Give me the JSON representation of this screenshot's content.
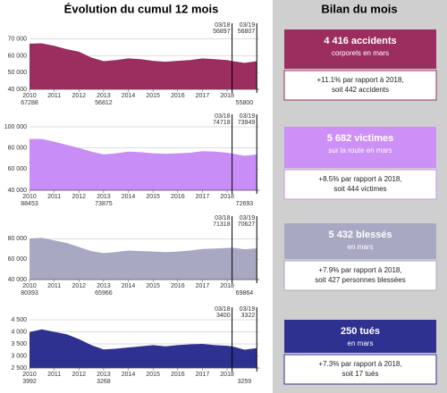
{
  "title": "Évolution du cumul 12 mois",
  "side_title": "Bilan du mois",
  "panels": [
    {
      "headline": "4 416 accidents",
      "subtitle": "corporels en mars",
      "lines": [
        "+11.1% par rapport à 2018,",
        "soit 442 accidents"
      ],
      "color": "#9b2d5f"
    },
    {
      "headline": "5 682 victimes",
      "subtitle": "sur la route en mars",
      "lines": [
        "+8.5% par rapport à 2018,",
        "soit 444 victimes"
      ],
      "color": "#cd90f7"
    },
    {
      "headline": "5 432 blessés",
      "subtitle": "en mars",
      "lines": [
        "+7.9% par rapport à 2018,",
        "soit 427 personnes blessées"
      ],
      "color": "#a9a8c3"
    },
    {
      "headline": "250 tués",
      "subtitle": "en mars",
      "lines": [
        "+7.3% par rapport à 2018,",
        "soit 17 tués"
      ],
      "color": "#2e3190"
    }
  ],
  "chart_data": [
    {
      "type": "area",
      "color": "#9b2d5f",
      "label_color": "#9b2d5f",
      "x": [
        2010,
        2010.5,
        2011,
        2011.5,
        2012,
        2012.5,
        2013,
        2013.5,
        2014,
        2014.5,
        2015,
        2015.5,
        2016,
        2016.5,
        2017,
        2017.5,
        2018,
        2018.2,
        2018.7,
        2019.2
      ],
      "values": [
        67288,
        67500,
        66000,
        64000,
        62500,
        59000,
        56812,
        57500,
        58500,
        58000,
        57000,
        56500,
        57000,
        57500,
        58500,
        58000,
        57500,
        56897,
        55800,
        56807
      ],
      "xlim": [
        2010,
        2019.3
      ],
      "xticks": [
        2010,
        2011,
        2012,
        2013,
        2014,
        2015,
        2016,
        2017,
        2018
      ],
      "ylim": [
        40000,
        72000
      ],
      "yticks": [
        {
          "value": 40000,
          "label": "40 000"
        },
        {
          "value": 50000,
          "label": "50 000"
        },
        {
          "value": 60000,
          "label": "60 000"
        },
        {
          "value": 70000,
          "label": "70 000"
        }
      ],
      "markers": [
        {
          "x": 2018.2,
          "label": "03/18"
        },
        {
          "x": 2019.2,
          "label": "03/19"
        }
      ],
      "labeled_x": [
        2010,
        2013,
        2018.7
      ]
    },
    {
      "type": "area",
      "color": "#c88ef6",
      "label_color": "#a77fd6",
      "x": [
        2010,
        2010.5,
        2011,
        2011.5,
        2012,
        2012.5,
        2013,
        2013.5,
        2014,
        2014.5,
        2015,
        2015.5,
        2016,
        2016.5,
        2017,
        2017.5,
        2018,
        2018.2,
        2018.7,
        2019.2
      ],
      "values": [
        88453,
        88500,
        86000,
        83000,
        80000,
        76500,
        73875,
        75000,
        76500,
        76000,
        75000,
        74500,
        75000,
        75500,
        77000,
        76500,
        75500,
        74718,
        72693,
        73949
      ],
      "xlim": [
        2010,
        2019.3
      ],
      "xticks": [
        2010,
        2011,
        2012,
        2013,
        2014,
        2015,
        2016,
        2017,
        2018
      ],
      "ylim": [
        40000,
        100000
      ],
      "yticks": [
        {
          "value": 40000,
          "label": "40 000"
        },
        {
          "value": 60000,
          "label": "60 000"
        },
        {
          "value": 80000,
          "label": "80 000"
        },
        {
          "value": 100000,
          "label": "100 000"
        }
      ],
      "markers": [
        {
          "x": 2018.2,
          "label": "03/18"
        },
        {
          "x": 2019.2,
          "label": "03/19"
        }
      ],
      "labeled_x": [
        2010,
        2013,
        2018.7
      ]
    },
    {
      "type": "area",
      "color": "#a9a8c3",
      "label_color": "#9796b3",
      "x": [
        2010,
        2010.5,
        2011,
        2011.5,
        2012,
        2012.5,
        2013,
        2013.5,
        2014,
        2014.5,
        2015,
        2015.5,
        2016,
        2016.5,
        2017,
        2017.5,
        2018,
        2018.2,
        2018.7,
        2019.2
      ],
      "values": [
        80393,
        81000,
        78500,
        76000,
        72000,
        68000,
        65966,
        67000,
        68500,
        68000,
        67500,
        67000,
        67500,
        68500,
        70000,
        70500,
        71000,
        71318,
        69864,
        70627
      ],
      "xlim": [
        2010,
        2019.3
      ],
      "xticks": [
        2010,
        2011,
        2012,
        2013,
        2014,
        2015,
        2016,
        2017,
        2018
      ],
      "ylim": [
        40000,
        90000
      ],
      "yticks": [
        {
          "value": 40000,
          "label": "40 000"
        },
        {
          "value": 60000,
          "label": "60 000"
        },
        {
          "value": 80000,
          "label": "80 000"
        }
      ],
      "markers": [
        {
          "x": 2018.2,
          "label": "03/18"
        },
        {
          "x": 2019.2,
          "label": "03/19"
        }
      ],
      "labeled_x": [
        2010,
        2013,
        2018.7
      ]
    },
    {
      "type": "area",
      "color": "#2e3190",
      "label_color": "#2e3190",
      "x": [
        2010,
        2010.5,
        2011,
        2011.5,
        2012,
        2012.5,
        2013,
        2013.5,
        2014,
        2014.5,
        2015,
        2015.5,
        2016,
        2016.5,
        2017,
        2017.5,
        2018,
        2018.2,
        2018.7,
        2019.2
      ],
      "values": [
        3992,
        4100,
        4000,
        3900,
        3700,
        3450,
        3268,
        3300,
        3350,
        3400,
        3450,
        3400,
        3450,
        3480,
        3500,
        3450,
        3420,
        3400,
        3259,
        3322
      ],
      "xlim": [
        2010,
        2019.3
      ],
      "xticks": [
        2010,
        2011,
        2012,
        2013,
        2014,
        2015,
        2016,
        2017,
        2018
      ],
      "ylim": [
        2500,
        4500
      ],
      "yticks": [
        {
          "value": 2500,
          "label": "2 500"
        },
        {
          "value": 3000,
          "label": "3 000"
        },
        {
          "value": 3500,
          "label": "3 500"
        },
        {
          "value": 4000,
          "label": "4 000"
        },
        {
          "value": 4500,
          "label": "4 500"
        }
      ],
      "markers": [
        {
          "x": 2018.2,
          "label": "03/18"
        },
        {
          "x": 2019.2,
          "label": "03/19"
        }
      ],
      "labeled_x": [
        2010,
        2013,
        2018.7
      ]
    }
  ]
}
